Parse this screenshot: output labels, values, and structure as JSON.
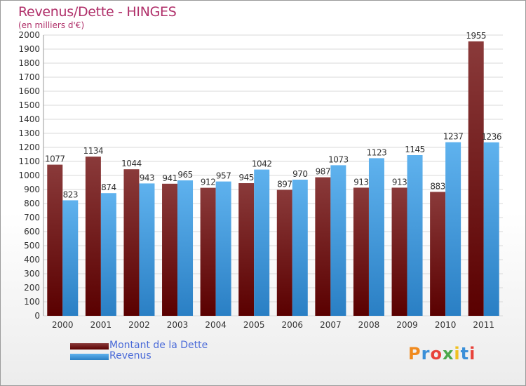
{
  "colors": {
    "title": "#b0306a",
    "debt_dark": "#5a0000",
    "debt_light": "#8a3a3a",
    "revenue_dark": "#2a7fc4",
    "revenue_light": "#5fb2ee",
    "grid": "#d8d8d8",
    "axis_text": "#333333",
    "legend_text": "#4a6ad8"
  },
  "chart_data": {
    "type": "bar",
    "title": "Revenus/Dette - HINGES",
    "subtitle": "(en milliers d'€)",
    "categories": [
      "2000",
      "2001",
      "2002",
      "2003",
      "2004",
      "2005",
      "2006",
      "2007",
      "2008",
      "2009",
      "2010",
      "2011"
    ],
    "series": [
      {
        "name": "Montant de la Dette",
        "values": [
          1077,
          1134,
          1044,
          941,
          912,
          945,
          897,
          987,
          913,
          913,
          883,
          1955
        ]
      },
      {
        "name": "Revenus",
        "values": [
          823,
          874,
          943,
          965,
          957,
          1042,
          970,
          1073,
          1123,
          1145,
          1237,
          1236
        ]
      }
    ],
    "ylim": [
      0,
      2000
    ],
    "yticks": [
      0,
      100,
      200,
      300,
      400,
      500,
      600,
      700,
      800,
      900,
      1000,
      1100,
      1200,
      1300,
      1400,
      1500,
      1600,
      1700,
      1800,
      1900,
      2000
    ],
    "grid": true,
    "legend_position": "bottom-left"
  },
  "logo": {
    "letters": [
      "P",
      "r",
      "o",
      "x",
      "i",
      "t",
      "i"
    ],
    "colors": [
      "#f08a1e",
      "#3a8fd8",
      "#e8423a",
      "#4aa84a",
      "#f0c020",
      "#3a8fd8",
      "#e8423a"
    ]
  }
}
